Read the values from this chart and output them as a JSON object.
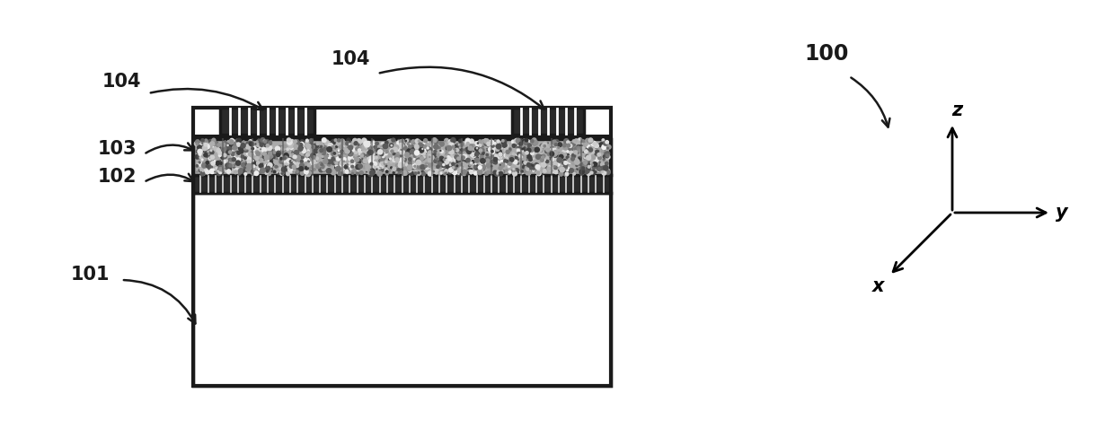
{
  "bg_color": "#ffffff",
  "label_color": "#1a1a1a",
  "structure_color": "#1a1a1a",
  "substrate_fill": "#ffffff",
  "layer102_fill": "#b0b0b0",
  "layer103_fill": "#c8c8c8",
  "electrode_fill": "#2a2a2a",
  "labels": {
    "104_left": "104",
    "104_center": "104",
    "103": "103",
    "102": "102",
    "101": "101",
    "100": "100"
  },
  "fontsize_label": 15,
  "fontsize_axis": 15
}
